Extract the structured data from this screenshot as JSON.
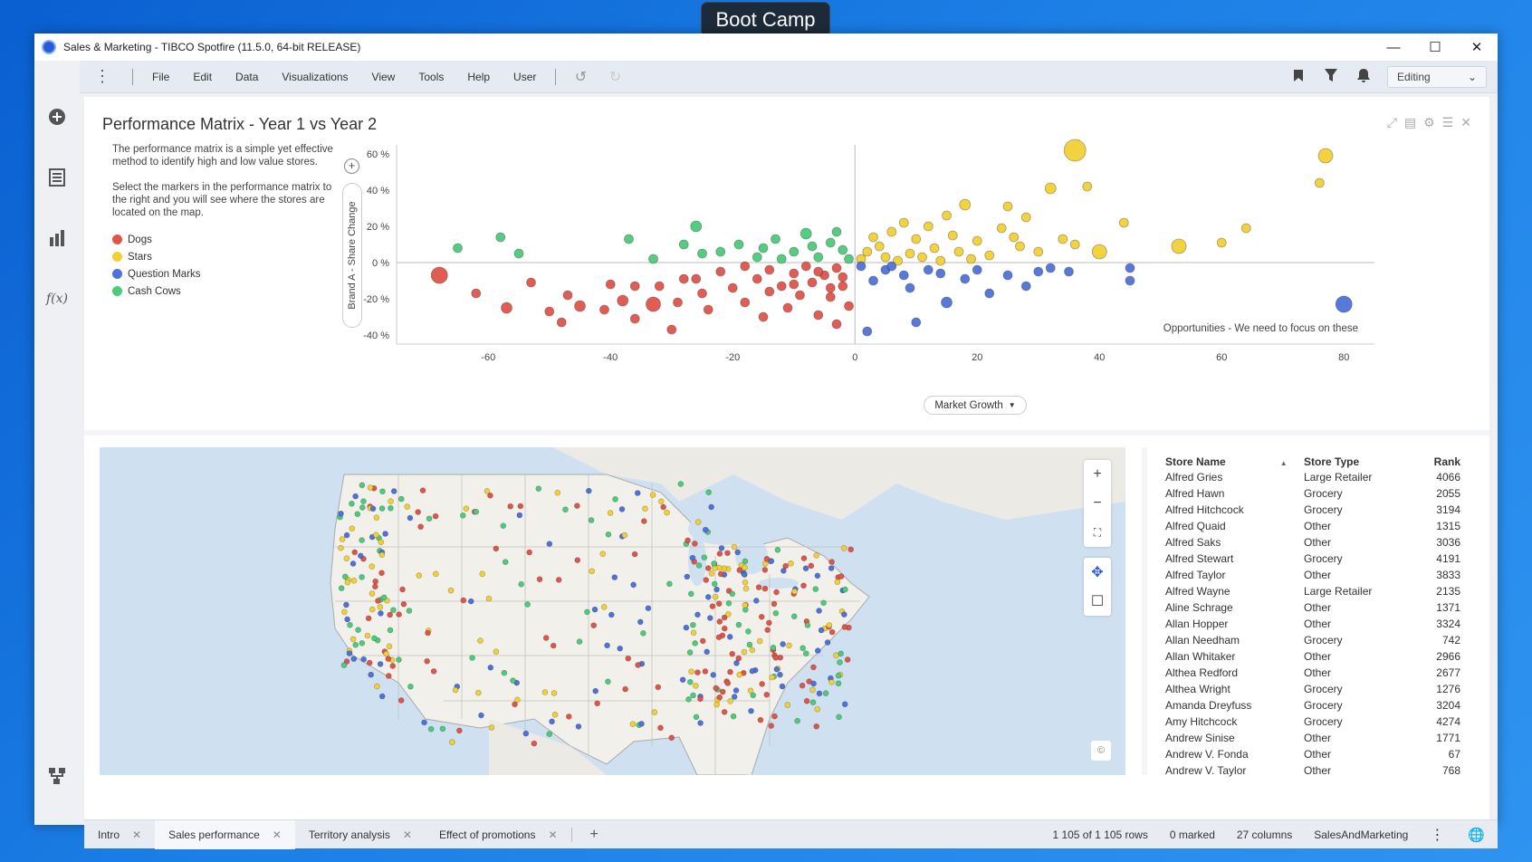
{
  "overlay": {
    "label": "Boot Camp"
  },
  "window": {
    "title": "Sales  & Marketing - TIBCO Spotfire (11.5.0, 64-bit RELEASE)"
  },
  "menu": {
    "items": [
      "File",
      "Edit",
      "Data",
      "Visualizations",
      "View",
      "Tools",
      "Help",
      "User"
    ],
    "mode": "Editing"
  },
  "leftbar": {
    "icons": [
      "add-icon",
      "data-table-icon",
      "bar-chart-icon",
      "fx-icon",
      "data-canvas-icon"
    ],
    "fx_label": "f(x)"
  },
  "viz": {
    "title": "Performance Matrix - Year 1 vs Year 2",
    "desc1": "The performance matrix is a simple yet effective method to identify high and low value stores.",
    "desc2": "Select the markers in the performance matrix to the right and you will see where the stores are located on the map.",
    "legend": [
      {
        "label": "Dogs",
        "color": "#e0554a"
      },
      {
        "label": "Stars",
        "color": "#f2d034"
      },
      {
        "label": "Question Marks",
        "color": "#4e72d9"
      },
      {
        "label": "Cash Cows",
        "color": "#4ccb7b"
      }
    ],
    "yaxis_label": "Brand A - Share Change",
    "xaxis_label": "Market Growth",
    "annotation": "Opportunities - We need to focus on these"
  },
  "chart_data": {
    "type": "scatter",
    "xlabel": "Market Growth",
    "ylabel": "Brand A - Share Change",
    "xlim": [
      -75,
      85
    ],
    "ylim": [
      -45,
      65
    ],
    "xticks": [
      "-60",
      "-40",
      "-20",
      "0",
      "20",
      "40",
      "60",
      "80"
    ],
    "yticks": [
      "60 %",
      "40 %",
      "20 %",
      "0 %",
      "-20 %",
      "-40 %"
    ],
    "series": [
      {
        "name": "Dogs",
        "color": "#e0554a",
        "points": [
          [
            -68,
            -7,
            9
          ],
          [
            -62,
            -17,
            5
          ],
          [
            -57,
            -25,
            6
          ],
          [
            -53,
            -11,
            5
          ],
          [
            -50,
            -27,
            5
          ],
          [
            -47,
            -18,
            5
          ],
          [
            -45,
            -24,
            6
          ],
          [
            -40,
            -12,
            5
          ],
          [
            -41,
            -26,
            5
          ],
          [
            -38,
            -21,
            6
          ],
          [
            -36,
            -31,
            5
          ],
          [
            -33,
            -23,
            8
          ],
          [
            -32,
            -13,
            5
          ],
          [
            -29,
            -22,
            5
          ],
          [
            -28,
            -9,
            5
          ],
          [
            -25,
            -17,
            5
          ],
          [
            -24,
            -26,
            5
          ],
          [
            -22,
            -5,
            5
          ],
          [
            -20,
            -14,
            5
          ],
          [
            -18,
            -22,
            5
          ],
          [
            -16,
            -9,
            5
          ],
          [
            -15,
            -30,
            5
          ],
          [
            -14,
            -4,
            5
          ],
          [
            -12,
            -13,
            5
          ],
          [
            -11,
            -25,
            5
          ],
          [
            -10,
            -6,
            5
          ],
          [
            -9,
            -18,
            5
          ],
          [
            -8,
            -2,
            5
          ],
          [
            -7,
            -11,
            5
          ],
          [
            -6,
            -29,
            5
          ],
          [
            -5,
            -7,
            5
          ],
          [
            -4,
            -19,
            5
          ],
          [
            -3,
            -3,
            5
          ],
          [
            -2,
            -13,
            5
          ],
          [
            -1,
            -24,
            5
          ],
          [
            -18,
            -2,
            5
          ],
          [
            -14,
            -16,
            5
          ],
          [
            -10,
            -12,
            5
          ],
          [
            -6,
            -5,
            5
          ],
          [
            -4,
            -14,
            5
          ],
          [
            -2,
            -8,
            5
          ],
          [
            -26,
            -9,
            5
          ],
          [
            -30,
            -37,
            5
          ],
          [
            -3,
            -34,
            5
          ],
          [
            -48,
            -33,
            5
          ],
          [
            -36,
            -13,
            5
          ]
        ]
      },
      {
        "name": "Stars",
        "color": "#f2d034",
        "points": [
          [
            36,
            62,
            12
          ],
          [
            77,
            59,
            8
          ],
          [
            76,
            44,
            5
          ],
          [
            32,
            41,
            6
          ],
          [
            38,
            42,
            5
          ],
          [
            18,
            32,
            6
          ],
          [
            25,
            31,
            5
          ],
          [
            28,
            25,
            5
          ],
          [
            15,
            26,
            5
          ],
          [
            12,
            20,
            5
          ],
          [
            10,
            13,
            5
          ],
          [
            8,
            22,
            5
          ],
          [
            6,
            17,
            5
          ],
          [
            4,
            9,
            5
          ],
          [
            3,
            14,
            5
          ],
          [
            2,
            6,
            5
          ],
          [
            1,
            2,
            5
          ],
          [
            5,
            3,
            5
          ],
          [
            9,
            5,
            5
          ],
          [
            13,
            8,
            5
          ],
          [
            16,
            15,
            5
          ],
          [
            20,
            12,
            5
          ],
          [
            22,
            4,
            5
          ],
          [
            24,
            19,
            5
          ],
          [
            27,
            9,
            5
          ],
          [
            30,
            6,
            5
          ],
          [
            34,
            13,
            5
          ],
          [
            36,
            10,
            5
          ],
          [
            40,
            6,
            8
          ],
          [
            53,
            9,
            8
          ],
          [
            60,
            11,
            5
          ],
          [
            64,
            19,
            5
          ],
          [
            44,
            22,
            5
          ],
          [
            7,
            1,
            5
          ],
          [
            11,
            3,
            5
          ],
          [
            14,
            1,
            5
          ],
          [
            17,
            6,
            5
          ],
          [
            19,
            2,
            5
          ],
          [
            26,
            14,
            5
          ]
        ]
      },
      {
        "name": "Question Marks",
        "color": "#4e72d9",
        "points": [
          [
            80,
            -23,
            9
          ],
          [
            45,
            -10,
            5
          ],
          [
            45,
            -3,
            5
          ],
          [
            35,
            -5,
            5
          ],
          [
            30,
            -5,
            5
          ],
          [
            28,
            -13,
            5
          ],
          [
            22,
            -17,
            5
          ],
          [
            15,
            -22,
            6
          ],
          [
            10,
            -33,
            5
          ],
          [
            2,
            -38,
            5
          ],
          [
            20,
            -4,
            5
          ],
          [
            18,
            -9,
            5
          ],
          [
            12,
            -4,
            5
          ],
          [
            8,
            -7,
            5
          ],
          [
            5,
            -4,
            5
          ],
          [
            3,
            -10,
            5
          ],
          [
            1,
            -2,
            5
          ],
          [
            6,
            -2,
            5
          ],
          [
            14,
            -6,
            5
          ],
          [
            25,
            -7,
            5
          ],
          [
            32,
            -3,
            5
          ],
          [
            9,
            -14,
            5
          ]
        ]
      },
      {
        "name": "Cash Cows",
        "color": "#4ccb7b",
        "points": [
          [
            -65,
            8,
            5
          ],
          [
            -58,
            14,
            5
          ],
          [
            -55,
            5,
            5
          ],
          [
            -37,
            13,
            5
          ],
          [
            -33,
            2,
            5
          ],
          [
            -26,
            20,
            6
          ],
          [
            -22,
            6,
            5
          ],
          [
            -19,
            10,
            5
          ],
          [
            -16,
            3,
            5
          ],
          [
            -13,
            13,
            5
          ],
          [
            -10,
            6,
            5
          ],
          [
            -8,
            16,
            6
          ],
          [
            -6,
            3,
            5
          ],
          [
            -4,
            11,
            5
          ],
          [
            -2,
            7,
            5
          ],
          [
            -1,
            2,
            5
          ],
          [
            -25,
            5,
            5
          ],
          [
            -28,
            10,
            5
          ],
          [
            -12,
            2,
            5
          ],
          [
            -3,
            17,
            5
          ],
          [
            -7,
            9,
            5
          ],
          [
            -15,
            8,
            5
          ]
        ]
      }
    ]
  },
  "map": {
    "copyright": "©",
    "controls": [
      "zoom-in-icon",
      "zoom-out-icon",
      "reset-view-icon",
      "pan-icon",
      "rect-select-icon"
    ],
    "colors": [
      "#e0554a",
      "#f2d034",
      "#4e72d9",
      "#4ccb7b"
    ]
  },
  "table": {
    "headers": [
      "Store Name",
      "Store Type",
      "Rank"
    ],
    "rows": [
      [
        "Alfred Gries",
        "Large Retailer",
        "4066"
      ],
      [
        "Alfred Hawn",
        "Grocery",
        "2055"
      ],
      [
        "Alfred Hitchcock",
        "Grocery",
        "3194"
      ],
      [
        "Alfred Quaid",
        "Other",
        "1315"
      ],
      [
        "Alfred Saks",
        "Other",
        "3036"
      ],
      [
        "Alfred Stewart",
        "Grocery",
        "4191"
      ],
      [
        "Alfred Taylor",
        "Other",
        "3833"
      ],
      [
        "Alfred Wayne",
        "Large Retailer",
        "2135"
      ],
      [
        "Aline Schrage",
        "Other",
        "1371"
      ],
      [
        "Allan Hopper",
        "Other",
        "3324"
      ],
      [
        "Allan Needham",
        "Grocery",
        "742"
      ],
      [
        "Allan Whitaker",
        "Other",
        "2966"
      ],
      [
        "Althea Redford",
        "Other",
        "2677"
      ],
      [
        "Althea Wright",
        "Grocery",
        "1276"
      ],
      [
        "Amanda Dreyfuss",
        "Grocery",
        "3204"
      ],
      [
        "Amy Hitchcock",
        "Grocery",
        "4274"
      ],
      [
        "Andrew Sinise",
        "Other",
        "1771"
      ],
      [
        "Andrew V. Fonda",
        "Other",
        "67"
      ],
      [
        "Andrew V. Taylor",
        "Other",
        "768"
      ]
    ]
  },
  "tabs": [
    {
      "label": "Intro",
      "active": false
    },
    {
      "label": "Sales performance",
      "active": true
    },
    {
      "label": "Territory analysis",
      "active": false
    },
    {
      "label": "Effect of promotions",
      "active": false
    }
  ],
  "status": {
    "rows": "1 105 of 1 105 rows",
    "marked": "0 marked",
    "columns": "27 columns",
    "source": "SalesAndMarketing"
  }
}
